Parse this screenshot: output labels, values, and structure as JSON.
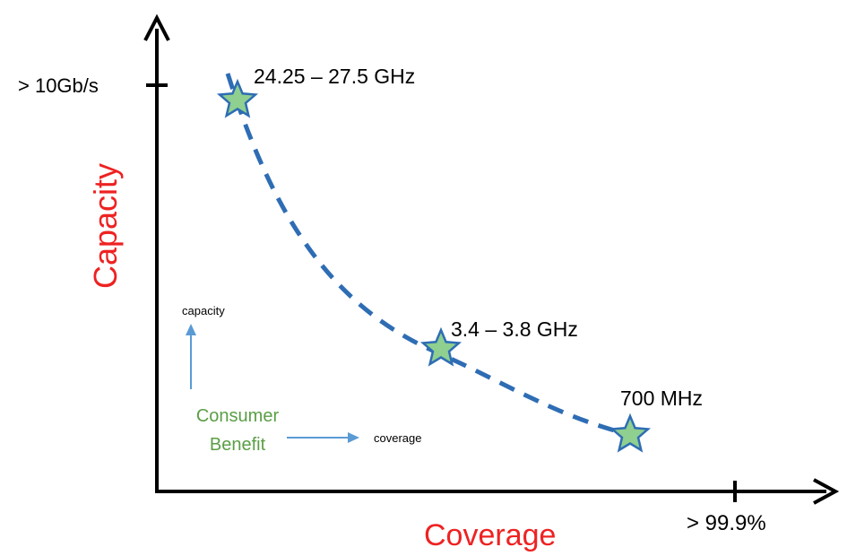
{
  "axes": {
    "x_label": "Coverage",
    "y_label": "Capacity",
    "x_tick_label": "> 99.9%",
    "y_tick_label": "> 10Gb/s",
    "label_color": "#ee2222",
    "axis_color": "#000000"
  },
  "curve": {
    "color": "#2e6db4",
    "style": "dashed"
  },
  "points": [
    {
      "label": "24.25 – 27.5 GHz",
      "marker": "star-icon"
    },
    {
      "label": "3.4 – 3.8 GHz",
      "marker": "star-icon"
    },
    {
      "label": "700 MHz",
      "marker": "star-icon"
    }
  ],
  "star_style": {
    "fill": "#8fcf8f",
    "stroke": "#2e6db4"
  },
  "legend": {
    "title_line1": "Consumer",
    "title_line2": "Benefit",
    "title_color": "#5a9e45",
    "up_arrow_label": "capacity",
    "right_arrow_label": "coverage",
    "arrow_color": "#5b9bd5"
  }
}
